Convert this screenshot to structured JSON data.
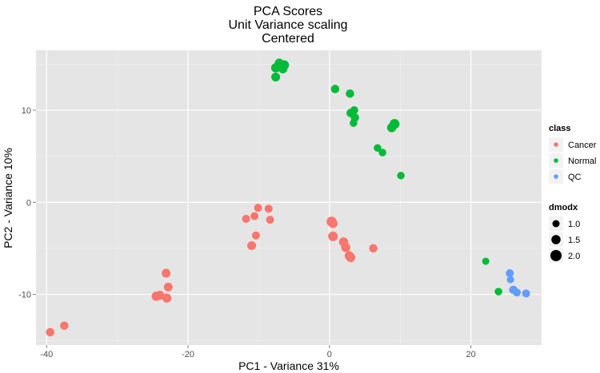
{
  "chart_data": {
    "type": "scatter",
    "title": [
      "PCA Scores",
      "Unit Variance scaling",
      "Centered"
    ],
    "xlabel": "PC1 - Variance 31%",
    "ylabel": "PC2 - Variance 10%",
    "xlim": [
      -41.5,
      30
    ],
    "ylim": [
      -15.5,
      16.5
    ],
    "xticks": [
      -40,
      -20,
      0,
      20
    ],
    "yticks": [
      -10,
      0,
      10
    ],
    "xtick_labels": [
      "-40",
      "-20",
      "0",
      "20"
    ],
    "ytick_labels": [
      "-10",
      "0",
      "10"
    ],
    "grid": true,
    "legend_position": "right",
    "class_legend": {
      "title": "class",
      "entries": [
        {
          "label": "Cancer",
          "color": "#F8766D"
        },
        {
          "label": "Normal",
          "color": "#00BA38"
        },
        {
          "label": "QC",
          "color": "#619CFF"
        }
      ]
    },
    "size_legend": {
      "title": "dmodx",
      "entries": [
        {
          "label": "1.0",
          "value": 1.0
        },
        {
          "label": "1.5",
          "value": 1.5
        },
        {
          "label": "2.0",
          "value": 2.0
        }
      ]
    },
    "series": [
      {
        "name": "Cancer",
        "color": "#F8766D",
        "points": [
          {
            "x": -39.5,
            "y": -14.1,
            "dmodx": 1.3
          },
          {
            "x": -37.5,
            "y": -13.4,
            "dmodx": 1.3
          },
          {
            "x": -24.5,
            "y": -10.2,
            "dmodx": 1.5
          },
          {
            "x": -24.0,
            "y": -10.1,
            "dmodx": 1.5
          },
          {
            "x": -23.0,
            "y": -10.4,
            "dmodx": 1.5
          },
          {
            "x": -22.8,
            "y": -9.2,
            "dmodx": 1.4
          },
          {
            "x": -23.1,
            "y": -7.7,
            "dmodx": 1.4
          },
          {
            "x": -11.8,
            "y": -1.8,
            "dmodx": 1.2
          },
          {
            "x": -10.6,
            "y": -1.5,
            "dmodx": 1.2
          },
          {
            "x": -10.1,
            "y": -0.6,
            "dmodx": 1.2
          },
          {
            "x": -8.6,
            "y": -0.7,
            "dmodx": 1.2
          },
          {
            "x": -8.4,
            "y": -1.9,
            "dmodx": 1.2
          },
          {
            "x": -10.4,
            "y": -3.6,
            "dmodx": 1.2
          },
          {
            "x": -11.0,
            "y": -4.7,
            "dmodx": 1.4
          },
          {
            "x": 0.3,
            "y": -2.1,
            "dmodx": 1.7
          },
          {
            "x": 0.5,
            "y": -2.3,
            "dmodx": 1.5
          },
          {
            "x": 0.5,
            "y": -3.7,
            "dmodx": 1.6
          },
          {
            "x": 2.0,
            "y": -4.3,
            "dmodx": 1.5
          },
          {
            "x": 2.3,
            "y": -4.9,
            "dmodx": 1.5
          },
          {
            "x": 2.8,
            "y": -5.8,
            "dmodx": 1.5
          },
          {
            "x": 3.0,
            "y": -6.0,
            "dmodx": 1.5
          },
          {
            "x": 6.2,
            "y": -5.0,
            "dmodx": 1.3
          }
        ]
      },
      {
        "name": "Normal",
        "color": "#00BA38",
        "points": [
          {
            "x": -7.6,
            "y": 14.6,
            "dmodx": 1.5
          },
          {
            "x": -7.1,
            "y": 15.1,
            "dmodx": 1.5
          },
          {
            "x": -6.4,
            "y": 14.9,
            "dmodx": 1.6
          },
          {
            "x": -6.6,
            "y": 14.5,
            "dmodx": 1.5
          },
          {
            "x": -7.6,
            "y": 13.6,
            "dmodx": 1.4
          },
          {
            "x": 0.8,
            "y": 12.3,
            "dmodx": 1.3
          },
          {
            "x": 2.9,
            "y": 11.8,
            "dmodx": 1.3
          },
          {
            "x": 3.5,
            "y": 10.0,
            "dmodx": 1.2
          },
          {
            "x": 3.0,
            "y": 9.7,
            "dmodx": 1.3
          },
          {
            "x": 3.6,
            "y": 9.2,
            "dmodx": 1.3
          },
          {
            "x": 3.4,
            "y": 8.6,
            "dmodx": 1.1
          },
          {
            "x": 9.2,
            "y": 8.5,
            "dmodx": 1.7
          },
          {
            "x": 8.8,
            "y": 8.1,
            "dmodx": 1.5
          },
          {
            "x": 6.8,
            "y": 5.9,
            "dmodx": 1.1
          },
          {
            "x": 7.5,
            "y": 5.4,
            "dmodx": 1.1
          },
          {
            "x": 10.1,
            "y": 2.9,
            "dmodx": 1.1
          },
          {
            "x": 22.1,
            "y": -6.4,
            "dmodx": 1.0
          },
          {
            "x": 23.9,
            "y": -9.7,
            "dmodx": 1.1
          }
        ]
      },
      {
        "name": "QC",
        "color": "#619CFF",
        "points": [
          {
            "x": 25.5,
            "y": -7.7,
            "dmodx": 1.2
          },
          {
            "x": 25.6,
            "y": -8.4,
            "dmodx": 1.0
          },
          {
            "x": 26.0,
            "y": -9.5,
            "dmodx": 1.3
          },
          {
            "x": 26.5,
            "y": -9.8,
            "dmodx": 1.2
          },
          {
            "x": 27.8,
            "y": -9.9,
            "dmodx": 1.2
          }
        ]
      }
    ]
  }
}
